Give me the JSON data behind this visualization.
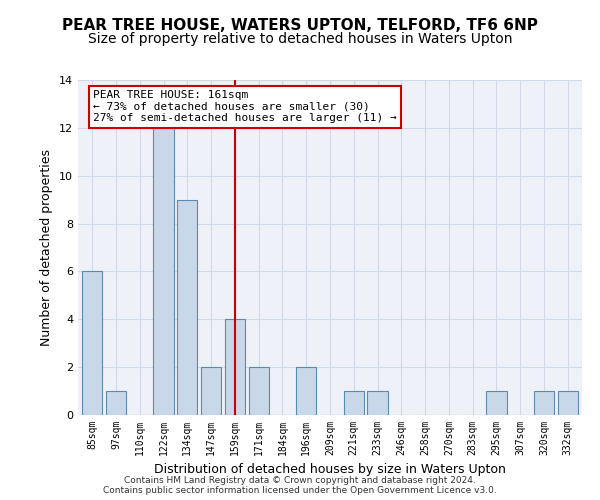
{
  "title1": "PEAR TREE HOUSE, WATERS UPTON, TELFORD, TF6 6NP",
  "title2": "Size of property relative to detached houses in Waters Upton",
  "xlabel": "Distribution of detached houses by size in Waters Upton",
  "ylabel": "Number of detached properties",
  "footer1": "Contains HM Land Registry data © Crown copyright and database right 2024.",
  "footer2": "Contains public sector information licensed under the Open Government Licence v3.0.",
  "annotation_line1": "PEAR TREE HOUSE: 161sqm",
  "annotation_line2": "← 73% of detached houses are smaller (30)",
  "annotation_line3": "27% of semi-detached houses are larger (11) →",
  "categories": [
    "85sqm",
    "97sqm",
    "110sqm",
    "122sqm",
    "134sqm",
    "147sqm",
    "159sqm",
    "171sqm",
    "184sqm",
    "196sqm",
    "209sqm",
    "221sqm",
    "233sqm",
    "246sqm",
    "258sqm",
    "270sqm",
    "283sqm",
    "295sqm",
    "307sqm",
    "320sqm",
    "332sqm"
  ],
  "values": [
    6,
    1,
    0,
    12,
    9,
    2,
    4,
    2,
    0,
    2,
    0,
    1,
    1,
    0,
    0,
    0,
    0,
    1,
    0,
    1,
    1
  ],
  "bar_color": "#c8d8e8",
  "bar_edge_color": "#5a8ab0",
  "vline_x": 6,
  "vline_color": "#cc0000",
  "annotation_box_edge": "#cc0000",
  "ylim": [
    0,
    14
  ],
  "yticks": [
    0,
    2,
    4,
    6,
    8,
    10,
    12,
    14
  ],
  "grid_color": "#d0d8e8",
  "bg_color": "#eef2f8",
  "title1_fontsize": 11,
  "title2_fontsize": 10,
  "xlabel_fontsize": 9,
  "ylabel_fontsize": 9,
  "annotation_fontsize": 8,
  "footer_fontsize": 6.5
}
